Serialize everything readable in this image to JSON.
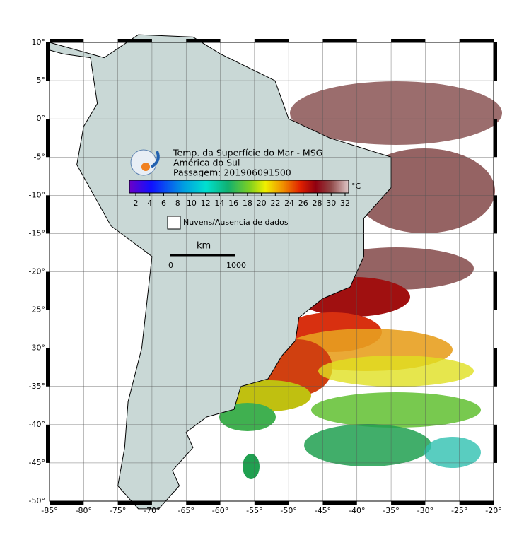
{
  "title": {
    "lines": [
      "Temp. da Superfície do Mar - MSG",
      "América do Sul",
      "Passagem: 201906091500"
    ]
  },
  "colorbar": {
    "ticks": [
      "2",
      "4",
      "6",
      "8",
      "10",
      "12",
      "14",
      "16",
      "18",
      "20",
      "22",
      "24",
      "26",
      "28",
      "30",
      "32"
    ],
    "unit": "°C"
  },
  "legend": {
    "label": "Nuvens/Ausencia de dados"
  },
  "scale_bar": {
    "unit": "km",
    "start": "0",
    "end": "1000"
  },
  "axes": {
    "lat_labels": [
      "10°",
      "5°",
      "0°",
      "-5°",
      "-10°",
      "-15°",
      "-20°",
      "-25°",
      "-30°",
      "-35°",
      "-40°",
      "-45°",
      "-50°"
    ],
    "lon_labels": [
      "-85°",
      "-80°",
      "-75°",
      "-70°",
      "-65°",
      "-60°",
      "-55°",
      "-50°",
      "-45°",
      "-40°",
      "-35°",
      "-30°",
      "-25°",
      "-20°"
    ]
  }
}
